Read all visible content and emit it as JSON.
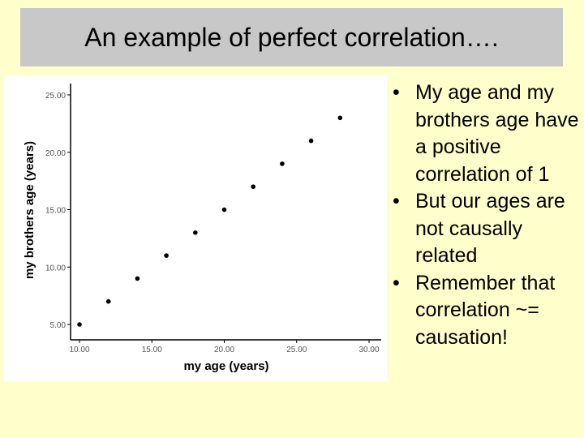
{
  "slide": {
    "title": "An example of perfect correlation…."
  },
  "bullets": [
    "My age and my brothers age have a positive correlation of 1",
    "But our ages are not causally related",
    "Remember that correlation ~= causation!"
  ],
  "bullet_glyph": "•",
  "colors": {
    "background": "#ffffcc",
    "title_bar": "#c8c8c8",
    "points": "#000000"
  },
  "chart_data": {
    "type": "scatter",
    "xlabel": "my age (years)",
    "ylabel": "my brothers age (years)",
    "xlim": [
      10,
      30
    ],
    "ylim": [
      5,
      25
    ],
    "xticks": [
      10,
      15,
      20,
      25,
      30
    ],
    "yticks": [
      5,
      10,
      15,
      20,
      25
    ],
    "xtick_labels": [
      "10.00",
      "15.00",
      "20.00",
      "25.00",
      "30.00"
    ],
    "ytick_labels": [
      "5.00",
      "10.00",
      "15.00",
      "20.00",
      "25.00"
    ],
    "grid": false,
    "points": [
      {
        "x": 10,
        "y": 5
      },
      {
        "x": 12,
        "y": 7
      },
      {
        "x": 14,
        "y": 9
      },
      {
        "x": 16,
        "y": 11
      },
      {
        "x": 18,
        "y": 13
      },
      {
        "x": 20,
        "y": 15
      },
      {
        "x": 22,
        "y": 17
      },
      {
        "x": 24,
        "y": 19
      },
      {
        "x": 26,
        "y": 21
      },
      {
        "x": 28,
        "y": 23
      }
    ]
  }
}
